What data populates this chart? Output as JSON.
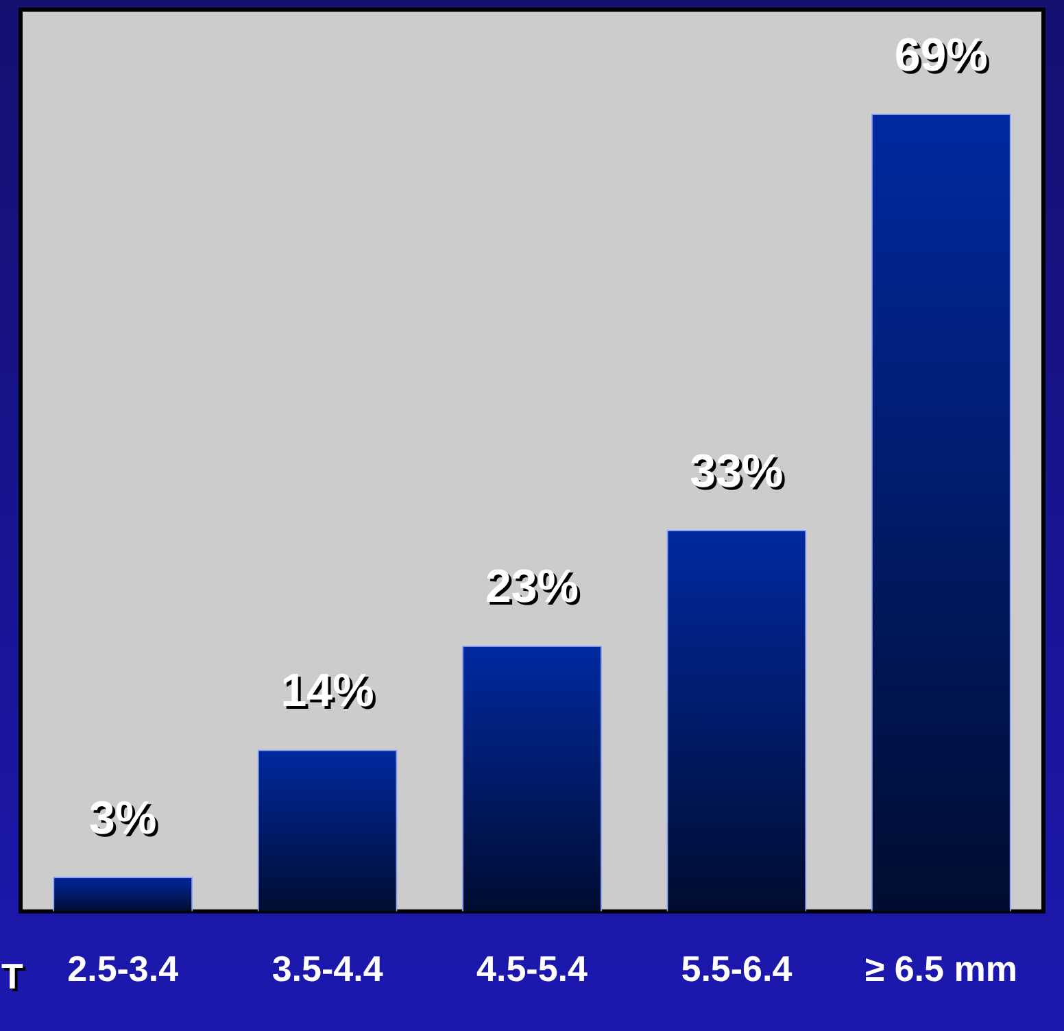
{
  "chart_data": {
    "type": "bar",
    "xlabel": "T",
    "categories": [
      "2.5-3.4",
      "3.5-4.4",
      "4.5-5.4",
      "5.5-6.4",
      "≥ 6.5 mm"
    ],
    "values": [
      3,
      14,
      23,
      33,
      69
    ],
    "value_labels": [
      "3%",
      "14%",
      "23%",
      "33%",
      "69%"
    ],
    "color": "#0029a0",
    "ylim": [
      0,
      78
    ],
    "legend": false,
    "grid": false
  }
}
